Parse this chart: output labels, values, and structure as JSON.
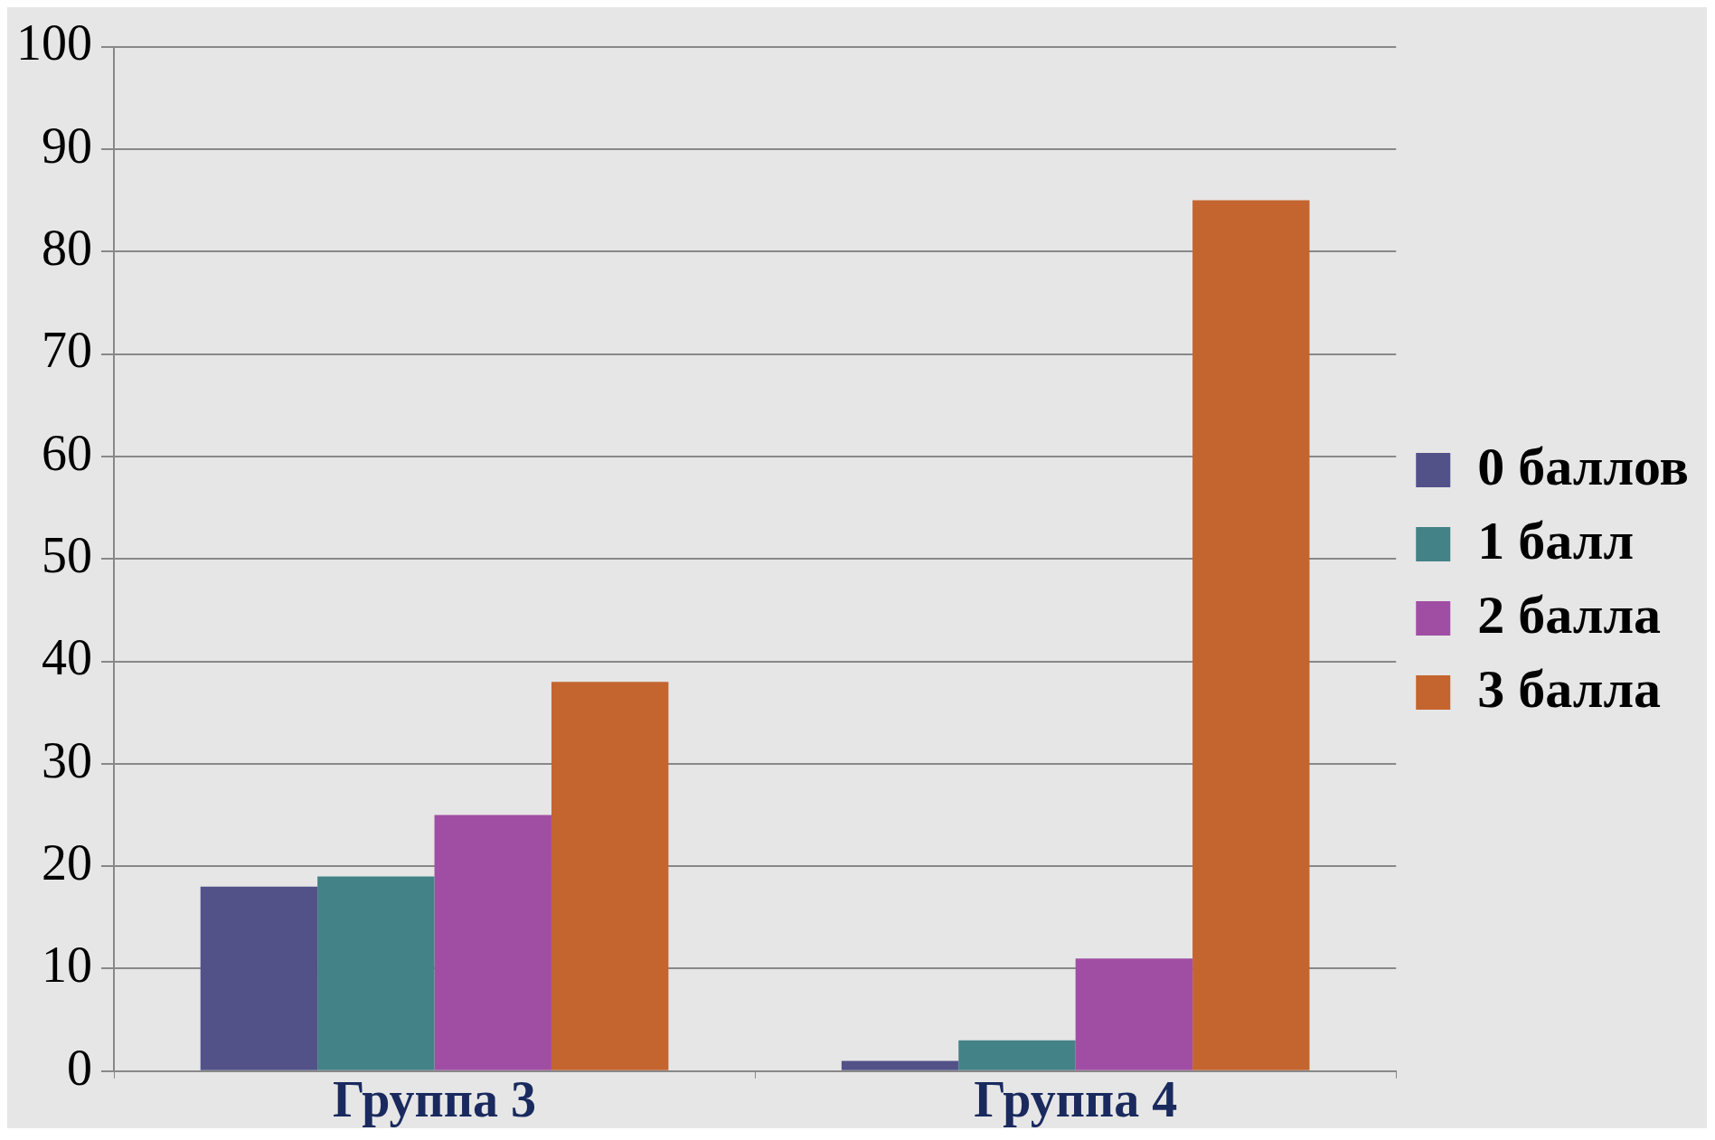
{
  "chart_data": {
    "type": "bar",
    "categories": [
      "Группа 3",
      "Группа 4"
    ],
    "series": [
      {
        "name": "0 баллов",
        "color": "#525289",
        "values": [
          18,
          1
        ]
      },
      {
        "name": "1 балл",
        "color": "#438286",
        "values": [
          19,
          3
        ]
      },
      {
        "name": "2 балла",
        "color": "#a04ea3",
        "values": [
          25,
          11
        ]
      },
      {
        "name": "3 балла",
        "color": "#c4652f",
        "values": [
          38,
          85
        ]
      }
    ],
    "ylim": [
      0,
      100
    ],
    "yticks": [
      0,
      10,
      20,
      30,
      40,
      50,
      60,
      70,
      80,
      90,
      100
    ],
    "grid": "y",
    "legend": "right"
  }
}
